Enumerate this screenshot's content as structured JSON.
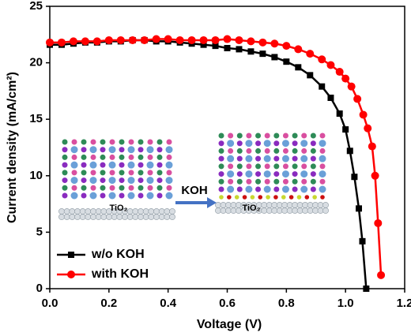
{
  "chart_data": {
    "type": "line",
    "xlabel": "Voltage (V)",
    "ylabel": "Current density (mA/cm²)",
    "xlim": [
      0,
      1.2
    ],
    "xticks": [
      {
        "value": 0,
        "label": "0.0"
      },
      0.2,
      0.4,
      0.6,
      0.8,
      {
        "value": 1,
        "label": "1.0"
      },
      1.2
    ],
    "ylim": [
      0,
      25
    ],
    "yticks": [
      0,
      5,
      10,
      15,
      20,
      25
    ],
    "legend": "lower left",
    "annotations": [
      "KOH",
      "TiO₂",
      "TiO₂"
    ],
    "series": [
      {
        "name": "w/o KOH",
        "color": "#000000",
        "marker": "square",
        "x": [
          0,
          0.04,
          0.08,
          0.12,
          0.16,
          0.2,
          0.24,
          0.28,
          0.32,
          0.36,
          0.4,
          0.44,
          0.48,
          0.52,
          0.56,
          0.6,
          0.64,
          0.68,
          0.72,
          0.76,
          0.8,
          0.84,
          0.88,
          0.92,
          0.95,
          0.98,
          1.0,
          1.015,
          1.03,
          1.045,
          1.057,
          1.07
        ],
        "values": [
          21.6,
          21.6,
          21.7,
          21.8,
          21.8,
          21.9,
          21.9,
          22.0,
          22.0,
          21.9,
          21.9,
          21.8,
          21.7,
          21.6,
          21.5,
          21.3,
          21.2,
          21.0,
          20.8,
          20.5,
          20.1,
          19.6,
          18.9,
          17.9,
          16.9,
          15.5,
          14.1,
          12.2,
          9.9,
          7.1,
          4.2,
          0
        ]
      },
      {
        "name": "with KOH",
        "color": "#ff0000",
        "marker": "circle",
        "x": [
          0,
          0.04,
          0.08,
          0.12,
          0.16,
          0.2,
          0.24,
          0.28,
          0.32,
          0.36,
          0.4,
          0.44,
          0.48,
          0.52,
          0.56,
          0.6,
          0.64,
          0.68,
          0.72,
          0.76,
          0.8,
          0.84,
          0.88,
          0.92,
          0.95,
          0.98,
          1.0,
          1.02,
          1.04,
          1.06,
          1.075,
          1.09,
          1.1,
          1.11,
          1.12
        ],
        "values": [
          21.8,
          21.8,
          21.9,
          21.9,
          21.9,
          22.0,
          22.0,
          22.0,
          22.0,
          22.1,
          22.1,
          22.0,
          22.0,
          22.0,
          22.0,
          22.1,
          22.0,
          21.9,
          21.8,
          21.7,
          21.5,
          21.2,
          20.8,
          20.3,
          19.8,
          19.2,
          18.6,
          17.9,
          16.8,
          15.4,
          14.2,
          12.6,
          10.0,
          5.8,
          1.2
        ]
      }
    ]
  }
}
